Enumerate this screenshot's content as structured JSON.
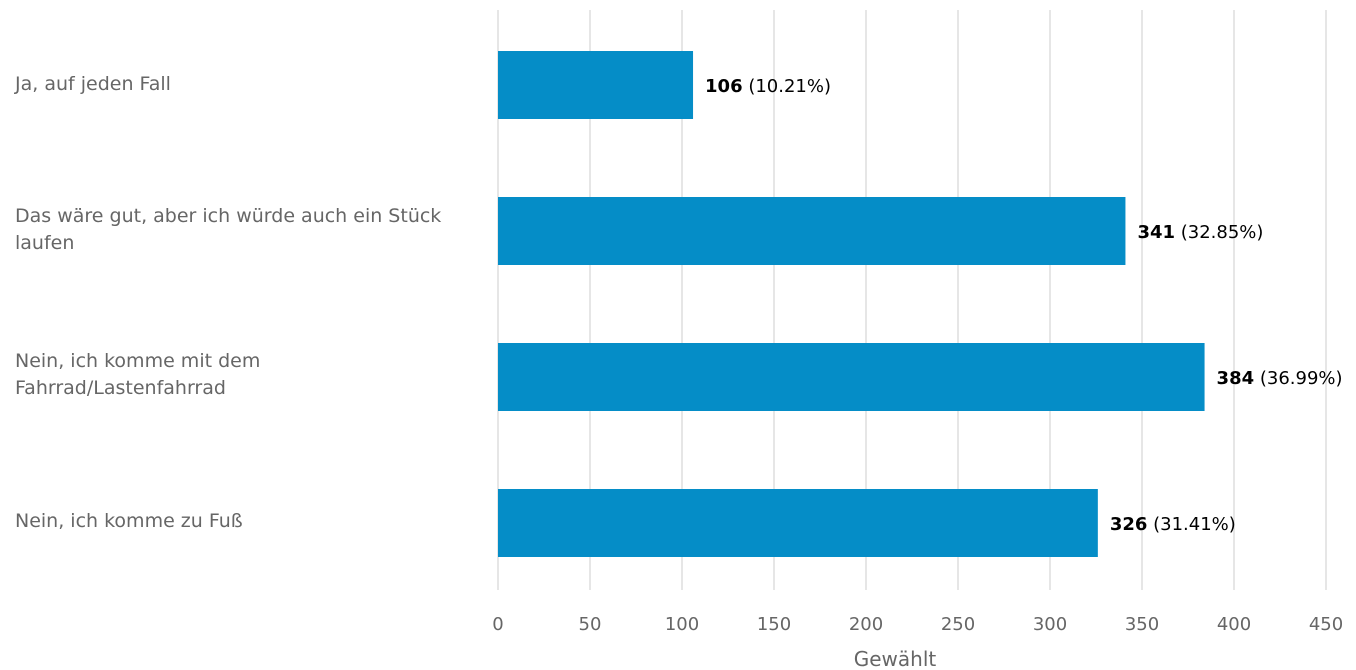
{
  "chart_data": {
    "type": "bar",
    "orientation": "horizontal",
    "categories": [
      "Ja, auf jeden Fall",
      "Das wäre gut, aber ich würde auch ein Stück laufen",
      "Nein, ich komme mit dem Fahrrad/Lastenfahrrad",
      "Nein, ich komme zu Fuß"
    ],
    "values": [
      106,
      341,
      384,
      326
    ],
    "percent_labels": [
      "(10.21%)",
      "(32.85%)",
      "(36.99%)",
      "(31.41%)"
    ],
    "xlabel": "Gewählt",
    "xlim": [
      0,
      450
    ],
    "xticks": [
      "0",
      "50",
      "100",
      "150",
      "200",
      "250",
      "300",
      "350",
      "400",
      "450"
    ],
    "bar_color": "#058dc7",
    "grid": true
  }
}
